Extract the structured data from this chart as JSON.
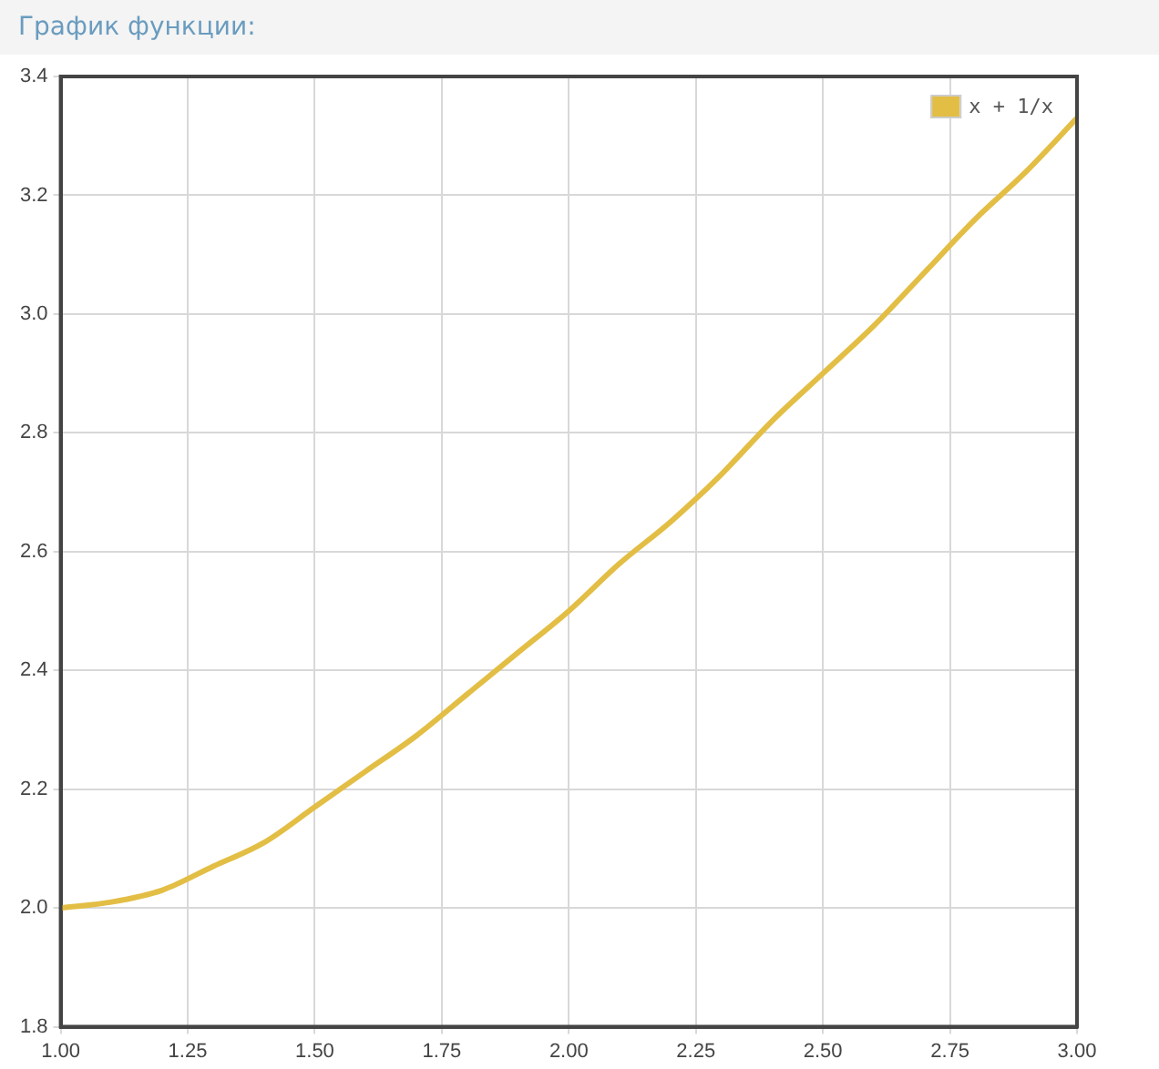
{
  "chart_data": {
    "type": "line",
    "title": "График функции:",
    "x": [
      1,
      1.1,
      1.2,
      1.3,
      1.4,
      1.5,
      1.6,
      1.7,
      1.8,
      1.9,
      2,
      2.1,
      2.2,
      2.3,
      2.4,
      2.5,
      2.6,
      2.7,
      2.8,
      2.9,
      3
    ],
    "series": [
      {
        "name": "x + 1/x",
        "color": "#e3be45",
        "values": [
          2.0,
          2.01,
          2.03,
          2.07,
          2.11,
          2.17,
          2.23,
          2.29,
          2.36,
          2.43,
          2.5,
          2.58,
          2.65,
          2.73,
          2.82,
          2.9,
          2.98,
          3.07,
          3.16,
          3.24,
          3.33
        ]
      }
    ],
    "xlim": [
      1,
      3
    ],
    "xticks": [
      {
        "value": 1,
        "label": "1.00"
      },
      {
        "value": 1.25,
        "label": "1.25"
      },
      {
        "value": 1.5,
        "label": "1.50"
      },
      {
        "value": 1.75,
        "label": "1.75"
      },
      {
        "value": 2,
        "label": "2.00"
      },
      {
        "value": 2.25,
        "label": "2.25"
      },
      {
        "value": 2.5,
        "label": "2.50"
      },
      {
        "value": 2.75,
        "label": "2.75"
      },
      {
        "value": 3,
        "label": "3.00"
      }
    ],
    "ylim": [
      1.8,
      3.4
    ],
    "yticks": [
      1.8,
      {
        "value": 2,
        "label": "2.0"
      },
      2.2,
      2.4,
      2.6,
      2.8,
      {
        "value": 3,
        "label": "3.0"
      },
      3.2,
      3.4
    ],
    "grid": true,
    "legend": "top right",
    "marker": "none",
    "line_style": "solid"
  }
}
